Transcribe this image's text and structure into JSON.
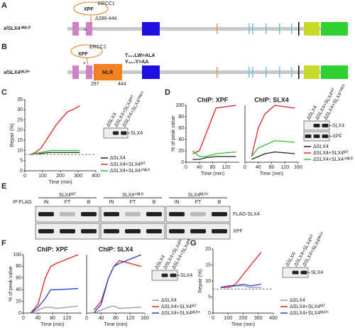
{
  "panels": [
    "A",
    "B",
    "C",
    "D",
    "E",
    "F",
    "G"
  ],
  "diagram_a": {
    "label": "xlSLX4ᐞᴹᴸᴿ",
    "partners": [
      "XPF",
      "ERCC1"
    ],
    "deletion": "Δ286-444"
  },
  "diagram_b": {
    "label": "xlSLX4ᴹᴸᴿ*",
    "partners": [
      "XPF",
      "ERCC1"
    ],
    "domain": "MLR",
    "start": 297,
    "end": 444,
    "mutations": [
      "T₃₁₀LW>ALA",
      "Y₃₃₄Y>AA"
    ]
  },
  "chart_data": [
    {
      "type": "line",
      "ylabel": "Repair (%)",
      "xlabel": "Time (min)",
      "x": [
        30,
        60,
        90,
        120,
        150,
        180,
        210,
        240,
        270,
        310
      ],
      "xlim": [
        0,
        400
      ],
      "xticks": [
        0,
        100,
        200,
        300,
        400
      ],
      "ylim": [
        0,
        35
      ],
      "yticks": [
        0,
        5,
        10,
        15,
        20,
        25,
        30,
        35
      ],
      "reference_line": 8,
      "legend": true,
      "series": [
        {
          "name": "ΔSLX4",
          "color": "#222222",
          "values": [
            8,
            8.5,
            8.5,
            8.8,
            9,
            9,
            9,
            9,
            9,
            9
          ]
        },
        {
          "name": "ΔSLX4+SLX4ᵂᵀ",
          "color": "#e02020",
          "values": [
            8,
            9,
            11,
            15,
            19,
            23,
            26,
            29,
            30,
            32
          ]
        },
        {
          "name": "ΔSLX4+SLX4ᐞᴹᴸᴿ",
          "color": "#30c030",
          "values": [
            8,
            8.5,
            9,
            9.5,
            10,
            10,
            10,
            10,
            10,
            10
          ]
        }
      ]
    },
    {
      "type": "line",
      "title": "ChIP: XPF",
      "ylabel": "% of peak value",
      "xlabel": "Time (min)",
      "x": [
        20,
        40,
        60,
        90,
        150
      ],
      "xlim": [
        0,
        160
      ],
      "xticks": [
        0,
        40,
        80,
        120
      ],
      "ylim": [
        0,
        100
      ],
      "yticks": [
        0,
        20,
        40,
        60,
        80,
        100
      ],
      "legend": false,
      "series": [
        {
          "name": "ΔSLX4",
          "color": "#222222",
          "values": [
            5,
            5,
            8,
            10,
            10
          ]
        },
        {
          "name": "ΔSLX4+SLX4ᵂᵀ",
          "color": "#e02020",
          "values": [
            15,
            20,
            50,
            95,
            100
          ]
        },
        {
          "name": "ΔSLX4+SLX4ᐞᴹᴸᴿ",
          "color": "#30c030",
          "values": [
            20,
            10,
            10,
            15,
            18
          ]
        }
      ]
    },
    {
      "type": "line",
      "title": "ChIP: SLX4",
      "xlabel": "Time (min)",
      "x": [
        20,
        40,
        60,
        90,
        150
      ],
      "xlim": [
        0,
        160
      ],
      "xticks": [
        0,
        40,
        80,
        120,
        160
      ],
      "ylim": [
        0,
        100
      ],
      "yticks": [],
      "legend": true,
      "series": [
        {
          "name": "ΔSLX4",
          "color": "#222222",
          "values": [
            5,
            10,
            15,
            18,
            15
          ]
        },
        {
          "name": "ΔSLX4+SLX4ᵂᵀ",
          "color": "#e02020",
          "values": [
            10,
            60,
            85,
            100,
            95
          ]
        },
        {
          "name": "ΔSLX4+SLX4ᐞᴹᴸᴿ",
          "color": "#30c030",
          "values": [
            10,
            25,
            30,
            38,
            35
          ]
        }
      ]
    },
    {
      "type": "line",
      "title": "ChIP: XPF",
      "ylabel": "% of peak value",
      "xlabel": "Time (min)",
      "x": [
        20,
        40,
        60,
        75,
        90,
        150
      ],
      "xlim": [
        0,
        160
      ],
      "xticks": [
        0,
        40,
        80,
        120
      ],
      "ylim": [
        0,
        100
      ],
      "yticks": [
        0,
        20,
        40,
        60,
        80,
        100
      ],
      "legend": false,
      "series": [
        {
          "name": "ΔSLX4",
          "color": "#999999",
          "values": [
            0,
            5,
            10,
            10,
            8,
            12
          ]
        },
        {
          "name": "ΔSLX4+SLX4ᵂᵀ",
          "color": "#e02020",
          "values": [
            0,
            15,
            60,
            80,
            85,
            100
          ]
        },
        {
          "name": "ΔSLX4+SLX4ᴹᴸᴿ*",
          "color": "#2040d0",
          "values": [
            0,
            10,
            25,
            40,
            40,
            42
          ]
        }
      ]
    },
    {
      "type": "line",
      "title": "ChIP: SLX4",
      "xlabel": "Time (min)",
      "x": [
        20,
        40,
        60,
        75,
        90,
        150
      ],
      "xlim": [
        0,
        160
      ],
      "xticks": [
        0,
        40,
        80,
        120,
        160
      ],
      "ylim": [
        0,
        100
      ],
      "yticks": [],
      "legend": true,
      "series": [
        {
          "name": "ΔSLX4",
          "color": "#999999",
          "values": [
            0,
            5,
            10,
            12,
            8,
            10
          ]
        },
        {
          "name": "ΔSLX4+SLX4ᵂᵀ",
          "color": "#e02020",
          "values": [
            5,
            20,
            60,
            80,
            90,
            80
          ]
        },
        {
          "name": "ΔSLX4+SLX4ᴹᴸᴿ*",
          "color": "#2040d0",
          "values": [
            0,
            15,
            60,
            80,
            85,
            100
          ]
        }
      ]
    },
    {
      "type": "line",
      "ylabel": "Repair (%)",
      "xlabel": "Time (min)",
      "x": [
        50,
        100,
        150,
        200,
        250,
        320
      ],
      "xlim": [
        0,
        400
      ],
      "xticks": [
        0,
        100,
        200,
        300,
        400
      ],
      "ylim": [
        0,
        20
      ],
      "yticks": [
        0,
        5,
        10,
        15,
        20
      ],
      "reference_line": 7.5,
      "legend": true,
      "series": [
        {
          "name": "ΔSLX4",
          "color": "#999999",
          "values": [
            8,
            8,
            8.5,
            8.5,
            8,
            8
          ]
        },
        {
          "name": "ΔSLX4+SLX4ᵂᵀ",
          "color": "#e02020",
          "values": [
            8,
            8,
            9,
            12,
            15,
            19
          ]
        },
        {
          "name": "ΔSLX4+SLX4ᴹᴸᴿ*",
          "color": "#2040d0",
          "values": [
            8,
            8.5,
            8.5,
            9,
            8.5,
            9
          ]
        }
      ]
    }
  ],
  "blots": {
    "c": {
      "lanes": [
        "ΔSLX4",
        "ΔSLX4+SLX4ᵂᵀ",
        "ΔSLX4+SLX4ᐞᴹᴸᴿ"
      ],
      "bands": [
        "SLX4"
      ]
    },
    "d": {
      "lanes": [
        "ΔSLX4",
        "ΔSLX4+SLX4ᵂᵀ",
        "ΔSLX4+SLX4ᐞᴹᴸᴿ"
      ],
      "bands": [
        "SLX4",
        "XPF"
      ]
    },
    "e": {
      "ip": "IP:FLAG",
      "groups": [
        "SLX4ᵂᵀ",
        "SLX4ᐞᴹᴸᴿ",
        "SLX4ᴹᴸᴿ*"
      ],
      "lanes": [
        "IN",
        "FT",
        "B"
      ],
      "bands": [
        "FLAG-SLX4",
        "XPF"
      ]
    },
    "f": {
      "lanes": [
        "ΔSLX4",
        "ΔSLX4+SLX4ᵂᵀ",
        "ΔSLX4+SLX4ᴹᴸᴿ*"
      ],
      "bands": [
        "SLX4"
      ]
    },
    "g": {
      "lanes": [
        "ΔSLX4",
        "ΔSLX4+SLX4ᵂᵀ",
        "ΔSLX4+SLX4ᴹᴸᴿ*"
      ],
      "bands": [
        "SLX4"
      ]
    }
  }
}
